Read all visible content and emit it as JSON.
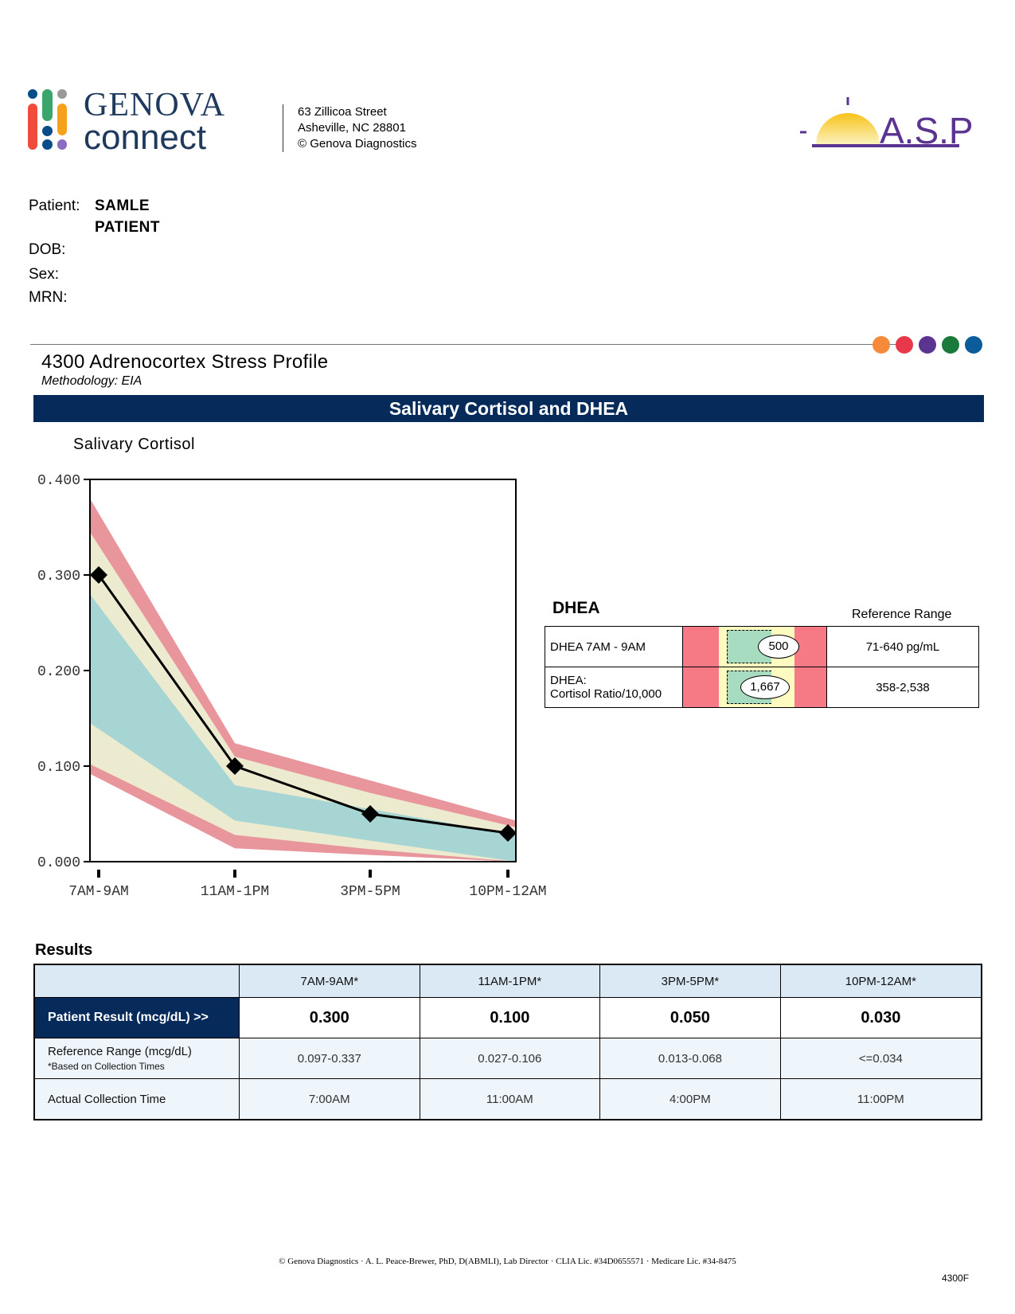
{
  "header": {
    "brand_line1": "GENOVA",
    "brand_line2": "connect",
    "address": [
      "63 Zillicoa Street",
      "Asheville, NC  28801",
      "© Genova Diagnostics"
    ],
    "asp_logo": "ASP"
  },
  "patient": {
    "label": "Patient:",
    "name_line1": "SAMLE",
    "name_line2": "PATIENT",
    "dob_label": "DOB:",
    "sex_label": "Sex:",
    "mrn_label": "MRN:"
  },
  "dots_colors": [
    "#f58a3c",
    "#e8394b",
    "#5b3391",
    "#1a7a3c",
    "#0a5c9a"
  ],
  "report": {
    "title": "4300 Adrenocortex Stress Profile",
    "methodology": "Methodology: EIA",
    "banner": "Salivary Cortisol and DHEA"
  },
  "chart_data": {
    "type": "line",
    "title": "Salivary Cortisol",
    "categories": [
      "7AM-9AM",
      "11AM-1PM",
      "3PM-5PM",
      "10PM-12AM"
    ],
    "values": [
      0.3,
      0.1,
      0.05,
      0.03
    ],
    "ylim": [
      0,
      0.4
    ],
    "yticks": [
      "0.000",
      "0.100",
      "0.200",
      "0.300",
      "0.400"
    ],
    "bands": {
      "red_top": [
        0.38,
        0.124,
        0.085,
        0.043
      ],
      "yellow_top": [
        0.345,
        0.11,
        0.072,
        0.036
      ],
      "teal_top": [
        0.28,
        0.08,
        0.055,
        0.028
      ],
      "teal_bottom": [
        0.145,
        0.043,
        0.022,
        0
      ],
      "yellow_bottom": [
        0.102,
        0.028,
        0.013,
        0
      ],
      "red_bottom": [
        0.092,
        0.014,
        0.007,
        0
      ]
    },
    "colors": {
      "red": "#e8959c",
      "yellow": "#ecebd0",
      "teal": "#a7d5d3"
    }
  },
  "dhea": {
    "title": "DHEA",
    "ref_header": "Reference Range",
    "rows": [
      {
        "label": "DHEA 7AM - 9AM",
        "value": "500",
        "ref": "71-640 pg/mL"
      },
      {
        "label_line1": "DHEA:",
        "label_line2": "Cortisol Ratio/10,000",
        "value": "1,667",
        "ref": "358-2,538"
      }
    ]
  },
  "results": {
    "title": "Results",
    "columns": [
      "7AM-9AM*",
      "11AM-1PM*",
      "3PM-5PM*",
      "10PM-12AM*"
    ],
    "patient_label": "Patient Result (mcg/dL) >>",
    "patient_values": [
      "0.300",
      "0.100",
      "0.050",
      "0.030"
    ],
    "ref_label": "Reference Range (mcg/dL)",
    "ref_note": "*Based on Collection Times",
    "ref_values": [
      "0.097-0.337",
      "0.027-0.106",
      "0.013-0.068",
      "<=0.034"
    ],
    "time_label": "Actual Collection Time",
    "time_values": [
      "7:00AM",
      "11:00AM",
      "4:00PM",
      "11:00PM"
    ]
  },
  "footer": {
    "text": "© Genova Diagnostics · A. L. Peace-Brewer, PhD, D(ABMLI), Lab Director · CLIA Lic. #34D0655571 · Medicare Lic. #34-8475",
    "code": "4300F"
  }
}
